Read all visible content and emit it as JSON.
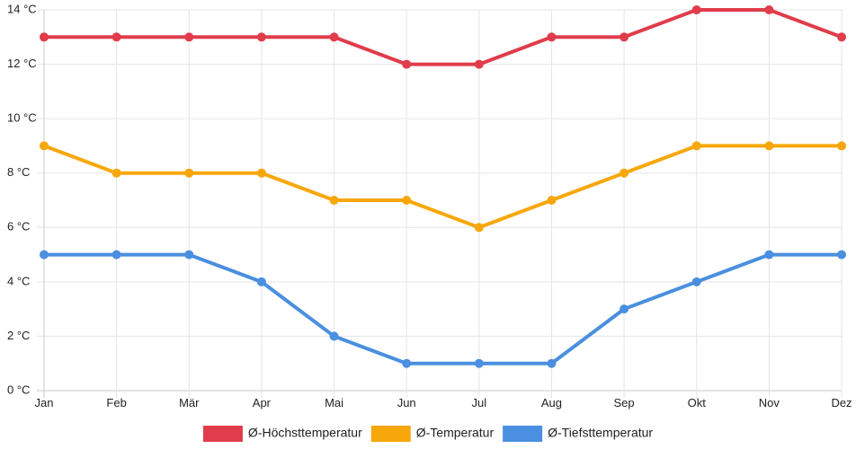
{
  "chart_data": {
    "type": "line",
    "categories": [
      "Jan",
      "Feb",
      "Mär",
      "Apr",
      "Mai",
      "Jun",
      "Jul",
      "Aug",
      "Sep",
      "Okt",
      "Nov",
      "Dez"
    ],
    "series": [
      {
        "name": "Ø-Höchsttemperatur",
        "color": "#e03c4b",
        "values": [
          13,
          13,
          13,
          13,
          13,
          12,
          12,
          13,
          13,
          14,
          14,
          13
        ]
      },
      {
        "name": "Ø-Temperatur",
        "color": "#f7a70a",
        "values": [
          9,
          8,
          8,
          8,
          7,
          7,
          6,
          7,
          8,
          9,
          9,
          9
        ]
      },
      {
        "name": "Ø-Tiefsttemperatur",
        "color": "#4a8fe0",
        "values": [
          5,
          5,
          5,
          4,
          2,
          1,
          1,
          1,
          3,
          4,
          5,
          5
        ]
      }
    ],
    "y_ticks": [
      "0 °C",
      "2 °C",
      "4 °C",
      "6 °C",
      "8 °C",
      "10 °C",
      "12 °C",
      "14 °C"
    ],
    "ylim": [
      0,
      14
    ],
    "y_step": 2,
    "grid": true,
    "legend": "bottom"
  }
}
